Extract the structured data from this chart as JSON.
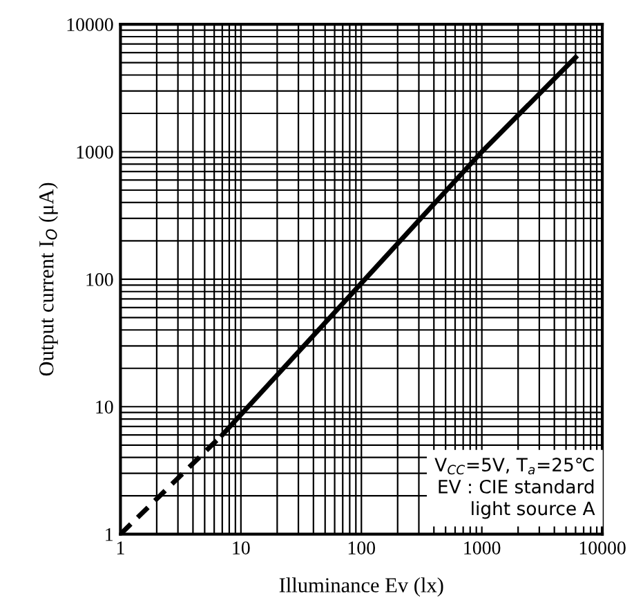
{
  "chart_data": {
    "type": "line",
    "xlabel": "Illuminance Ev (lx)",
    "ylabel": "Output current I$_{O}$ (μA)",
    "log": "xy",
    "xlim": [
      1,
      10000
    ],
    "xticks": [
      1,
      10,
      100,
      1000,
      10000
    ],
    "ylim": [
      1,
      10000
    ],
    "yticks": [
      1,
      10,
      100,
      1000,
      10000
    ],
    "grid": true,
    "series": [
      {
        "line_style": "dashed",
        "color": "#000000",
        "x": [
          1,
          7
        ],
        "values": [
          1,
          6
        ]
      },
      {
        "line_style": "solid",
        "color": "#000000",
        "x": [
          7,
          1000,
          6000
        ],
        "values": [
          6,
          1000,
          5500
        ]
      }
    ],
    "annotations": [
      "V$_{CC}$=5V, T$_{a}$=25℃\nEV : CIE standard\nlight source A"
    ]
  }
}
